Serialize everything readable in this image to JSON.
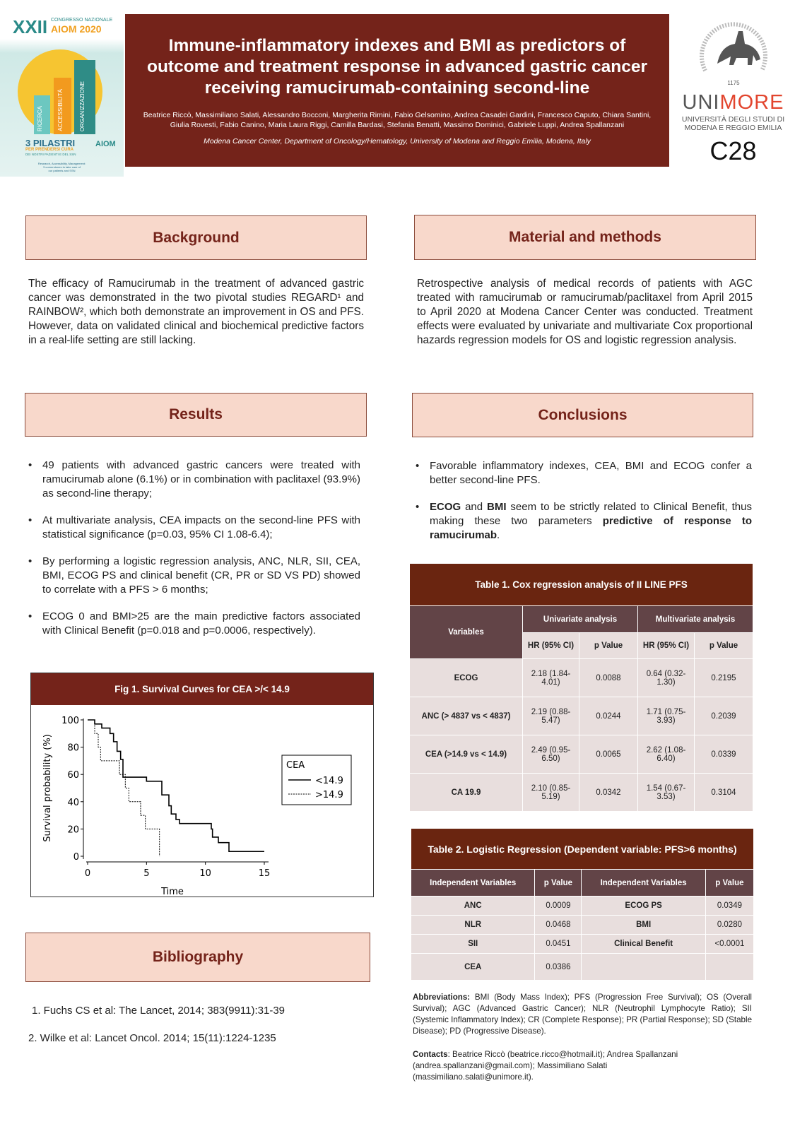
{
  "logo_left": {
    "roman": "XXII",
    "congress": "CONGRESSO NAZIONALE",
    "aiom": "AIOM 2020",
    "pillars": [
      "RICERCA",
      "ACCESSIBILITÀ",
      "ORGANIZZAZIONE"
    ],
    "headline": "3 PILASTRI",
    "sub1": "PER PRENDERSI CURA",
    "sub2": "DEI NOSTRI PAZIENTI E DEL SSN",
    "tag1": "Research, Accessibility, Management:",
    "tag2": "3 cornerstones to take care of",
    "tag3": "our patients and SSN",
    "brand": "AIOM"
  },
  "logo_right": {
    "seal": "UNIVERSITAS STUDIORUM MUTINENSIS ET REGIENSIS",
    "year": "1175",
    "uni": "UNI",
    "more": "MORE",
    "line1": "UNIVERSITÀ DEGLI STUDI DI",
    "line2": "MODENA E REGGIO EMILIA",
    "code": "C28"
  },
  "colors": {
    "brand": "#74231a",
    "box": "#f8d8cb",
    "header": "#624447",
    "cell": "#e8dedd",
    "unimore": "#e2452e"
  },
  "header": {
    "title": "Immune-inflammatory indexes and BMI as predictors of outcome and treatment response in advanced gastric cancer receiving ramucirumab-containing second-line",
    "authors": "Beatrice Riccò, Massimiliano Salati, Alessandro Bocconi, Margherita Rimini, Fabio Gelsomino, Andrea Casadei Gardini, Francesco Caputo, Chiara Santini, Giulia Rovesti, Fabio Canino, Maria Laura Riggi, Camilla Bardasi, Stefania Benatti, Massimo Dominici, Gabriele Luppi, Andrea Spallanzani",
    "affiliation": "Modena Cancer Center, Department of Oncology/Hematology, University of Modena and Reggio Emilia, Modena, Italy"
  },
  "background": {
    "title": "Background",
    "text": "The efficacy of Ramucirumab in the treatment of advanced gastric cancer was demonstrated in the two pivotal studies REGARD¹ and RAINBOW², which both demonstrate an improvement in OS and PFS. However, data on validated clinical and biochemical predictive factors in a real-life setting are still lacking."
  },
  "methods": {
    "title": "Material and methods",
    "text": "Retrospective analysis of medical records of patients with AGC treated with ramucirumab or ramucirumab/paclitaxel from April 2015 to April 2020 at Modena Cancer Center was conducted. Treatment effects were evaluated by univariate and multivariate Cox proportional hazards regression models for OS and logistic regression analysis."
  },
  "results": {
    "title": "Results",
    "bullets": [
      "49 patients with advanced gastric cancers were treated with ramucirumab alone (6.1%) or in combination with paclitaxel (93.9%) as second-line therapy;",
      "At multivariate analysis, CEA impacts on the second-line PFS with statistical significance (p=0.03, 95% CI 1.08-6.4);",
      "By performing a logistic regression analysis, ANC, NLR, SII, CEA, BMI, ECOG PS and clinical benefit (CR, PR or SD VS PD) showed to correlate with a PFS > 6 months;",
      "ECOG 0 and BMI>25 are the main predictive factors associated with Clinical Benefit (p=0.018 and p=0.0006, respectively)."
    ]
  },
  "conclusions": {
    "title": "Conclusions",
    "b1": "Favorable inflammatory indexes, CEA, BMI and ECOG confer a better second-line PFS.",
    "b2": {
      "s1": "ECOG",
      "s2": " and ",
      "s3": "BMI",
      "s4": " seem to be strictly related to Clinical Benefit, thus making these two parameters ",
      "s5": "predictive of response to ramucirumab",
      "s6": "."
    }
  },
  "table1": {
    "title": "Table 1.  Cox regression analysis of II LINE PFS",
    "variables": "Variables",
    "uni": "Univariate analysis",
    "multi": "Multivariate analysis",
    "hr": "HR (95% CI)",
    "p": "p Value",
    "rows": [
      [
        "ECOG",
        "2.18 (1.84-4.01)",
        "0.0088",
        "0.64 (0.32-1.30)",
        "0.2195"
      ],
      [
        "ANC (> 4837 vs < 4837)",
        "2.19 (0.88-5.47)",
        "0.0244",
        "1.71 (0.75-3.93)",
        "0.2039"
      ],
      [
        "CEA (>14.9 vs < 14.9)",
        "2.49 (0.95-6.50)",
        "0.0065",
        "2.62 (1.08-6.40)",
        "0.0339"
      ],
      [
        "CA 19.9",
        "2.10 (0.85-5.19)",
        "0.0342",
        "1.54 (0.67-3.53)",
        "0.3104"
      ]
    ]
  },
  "table2": {
    "title": "Table 2.  Logistic Regression  (Dependent variable: PFS>6 months)",
    "h1": "Independent Variables",
    "h2": "p Value",
    "rows": [
      [
        "ANC",
        "0.0009",
        "ECOG PS",
        "0.0349"
      ],
      [
        "NLR",
        "0.0468",
        "BMI",
        "0.0280"
      ],
      [
        "SII",
        "0.0451",
        "Clinical Benefit",
        "<0.0001"
      ],
      [
        "CEA",
        "0.0386",
        "",
        ""
      ]
    ]
  },
  "figure": {
    "title": "Fig 1. Survival Curves for CEA >/< 14.9"
  },
  "chart_data": {
    "type": "line",
    "step": true,
    "xlabel": "Time",
    "ylabel": "Survival probability (%)",
    "xlim": [
      0,
      15
    ],
    "ylim": [
      0,
      100
    ],
    "xticks": [
      0,
      5,
      10,
      15
    ],
    "yticks": [
      0,
      20,
      40,
      60,
      80,
      100
    ],
    "legend_title": "CEA",
    "legend_position": "right",
    "series": [
      {
        "name": "<14.9",
        "style": "solid",
        "points": [
          [
            0,
            100
          ],
          [
            0.6,
            97
          ],
          [
            1.2,
            94
          ],
          [
            1.9,
            90
          ],
          [
            2.2,
            84
          ],
          [
            2.5,
            77
          ],
          [
            2.8,
            71
          ],
          [
            3.0,
            58
          ],
          [
            5.0,
            55
          ],
          [
            6.3,
            45
          ],
          [
            6.9,
            37
          ],
          [
            7.1,
            31
          ],
          [
            7.5,
            27
          ],
          [
            7.8,
            24
          ],
          [
            10.5,
            20
          ],
          [
            10.6,
            14
          ],
          [
            11.1,
            10
          ],
          [
            12.0,
            3.5
          ],
          [
            15,
            3.5
          ]
        ]
      },
      {
        "name": ">14.9",
        "style": "dashed",
        "points": [
          [
            0,
            100
          ],
          [
            0.6,
            90
          ],
          [
            0.9,
            80
          ],
          [
            1.1,
            70
          ],
          [
            2.7,
            60
          ],
          [
            3.2,
            50
          ],
          [
            3.5,
            40
          ],
          [
            4.5,
            30
          ],
          [
            4.9,
            20
          ],
          [
            6.1,
            0
          ]
        ]
      }
    ]
  },
  "bibliography": {
    "title": "Bibliography",
    "items": [
      "1. Fuchs CS et al: The Lancet, 2014; 383(9911):31-39",
      "2. Wilke et al: Lancet Oncol. 2014; 15(11):1224-1235"
    ]
  },
  "abbrev": {
    "label": "Abbreviations:",
    "text": " BMI (Body Mass Index); PFS (Progression Free Survival); OS (Overall Survival); AGC (Advanced Gastric Cancer); NLR (Neutrophil Lymphocyte Ratio); SII (Systemic Inflammatory Index); CR (Complete Response); PR (Partial Response); SD (Stable Disease); PD (Progressive Disease)."
  },
  "contacts": {
    "label": "Contacts",
    "text": ":  Beatrice Riccò (beatrice.ricco@hotmail.it); Andrea Spallanzani (andrea.spallanzani@gmail.com); Massimiliano Salati (massimiliano.salati@unimore.it)."
  }
}
